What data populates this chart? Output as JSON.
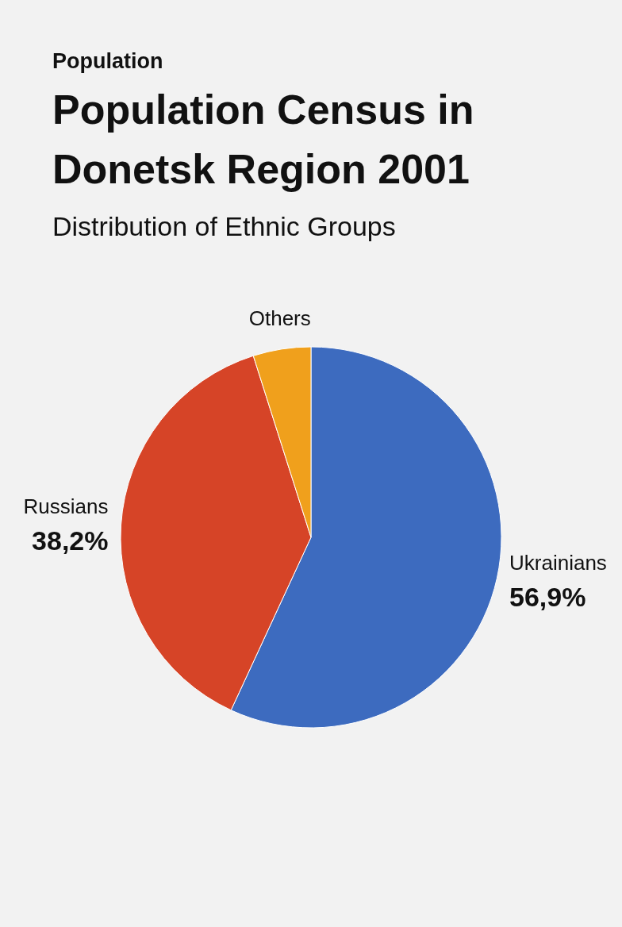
{
  "chart_data": {
    "type": "pie",
    "annotations": [
      "Population"
    ],
    "title": "Population Census in Donetsk Region 2001",
    "subtitle": "Distribution of Ethnic Groups",
    "categories": [
      "Ukrainians",
      "Russians",
      "Others"
    ],
    "values": [
      56.9,
      38.2,
      4.9
    ],
    "value_labels": [
      "56,9%",
      "38,2%",
      null
    ],
    "colors": [
      "#3d6bbf",
      "#d64427",
      "#f0a01c"
    ]
  }
}
